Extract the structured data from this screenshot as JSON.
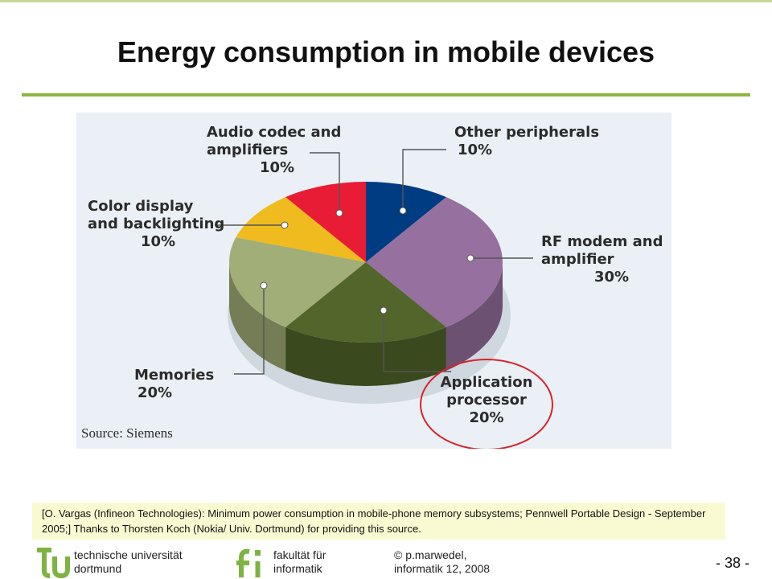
{
  "slide": {
    "title": "Energy consumption in mobile devices",
    "citation": "[O. Vargas (Infineon Technologies): Minimum power consumption in mobile-phone memory subsystems; Pennwell Portable Design - September 2005;] Thanks to Thorsten Koch (Nokia/ Univ. Dortmund) for providing this source.",
    "footer": {
      "university_line1": "technische universität",
      "university_line2": "dortmund",
      "faculty_line1": "fakultät für",
      "faculty_line2": "informatik",
      "author_line1": "© p.marwedel,",
      "author_line2": "informatik 12,  2008",
      "page": "-  38 -"
    }
  },
  "colors": {
    "accent_green": "#8cb63c",
    "highlight_red": "#d9222a"
  },
  "chart_data": {
    "type": "pie",
    "title": "",
    "source": "Source: Siemens",
    "series": [
      {
        "label": "Other peripherals",
        "value": 10,
        "pct_label": "10%",
        "color": "#003c82",
        "label_lines": [
          "Other peripherals"
        ]
      },
      {
        "label": "RF modem and amplifier",
        "value": 30,
        "pct_label": "30%",
        "color": "#96709e",
        "label_lines": [
          "RF modem and",
          "amplifier"
        ]
      },
      {
        "label": "Application processor",
        "value": 20,
        "pct_label": "20%",
        "color": "#52652a",
        "label_lines": [
          "Application",
          "processor"
        ],
        "highlighted": true
      },
      {
        "label": "Memories",
        "value": 20,
        "pct_label": "20%",
        "color": "#a2ae78",
        "label_lines": [
          "Memories"
        ]
      },
      {
        "label": "Color display and backlighting",
        "value": 10,
        "pct_label": "10%",
        "color": "#efbb1e",
        "label_lines": [
          "Color display",
          "and backlighting"
        ]
      },
      {
        "label": "Audio codec and amplifiers",
        "value": 10,
        "pct_label": "10%",
        "color": "#e81c34",
        "label_lines": [
          "Audio codec and",
          "amplifiers"
        ]
      }
    ]
  }
}
